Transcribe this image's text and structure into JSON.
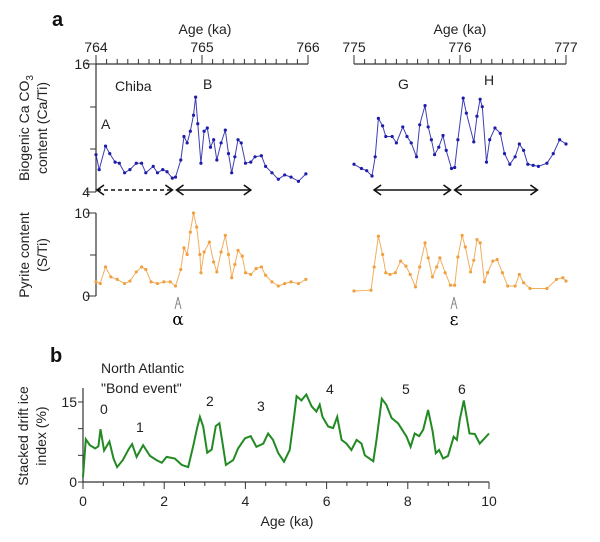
{
  "panel_a": {
    "letter": "a",
    "site_label": "Chiba",
    "ca_ylabel_line1": "Biogenic Ca CO",
    "ca_ylabel_sub": "3",
    "ca_ylabel_line2": "content (Ca/Ti)",
    "pyrite_ylabel_line1": "Pyrite content",
    "pyrite_ylabel_line2": "(S/Ti)",
    "event_labels": {
      "A": "A",
      "B": "B",
      "G": "G",
      "H": "H"
    },
    "markers": {
      "alpha": "α",
      "epsilon": "ε"
    }
  },
  "panel_b": {
    "letter": "b",
    "title_line1": "North Atlantic",
    "title_line2": "\"Bond event\"",
    "ylabel_line1": "Stacked drift ice",
    "ylabel_line2": "index (%)",
    "event_labels": [
      "0",
      "1",
      "2",
      "3",
      "4",
      "5",
      "6"
    ]
  },
  "colors": {
    "ca": "#1c1ca8",
    "pyrite": "#f0a040",
    "bond": "#238a23"
  },
  "chart_data": [
    {
      "type": "line",
      "panel": "a-top",
      "xlabel": "Age (ka)",
      "ylabel": "Biogenic Ca CO3 content (Ca/Ti)",
      "ylim": [
        4,
        16
      ],
      "yticks": [
        "16",
        "4"
      ],
      "windows": [
        {
          "xlim": [
            764,
            766
          ],
          "xticks": [
            "764",
            "765",
            "766"
          ],
          "x": [
            764.0,
            764.03,
            764.09,
            764.13,
            764.18,
            764.22,
            764.27,
            764.32,
            764.38,
            764.43,
            764.47,
            764.54,
            764.58,
            764.63,
            764.67,
            764.72,
            764.75,
            764.8,
            764.83,
            764.86,
            764.89,
            764.92,
            764.94,
            764.96,
            764.99,
            765.02,
            765.05,
            765.08,
            765.11,
            765.14,
            765.18,
            765.22,
            765.25,
            765.28,
            765.31,
            765.34,
            765.37,
            765.41,
            765.46,
            765.5,
            765.56,
            765.6,
            765.66,
            765.72,
            765.78,
            765.84,
            765.91,
            765.98
          ],
          "y": [
            7.5,
            6.1,
            8.3,
            7.6,
            6.8,
            6.7,
            5.8,
            6.1,
            6.7,
            6.7,
            5.8,
            6.4,
            5.8,
            6.1,
            5.9,
            5.3,
            5.4,
            7.0,
            9.2,
            8.6,
            9.7,
            11.2,
            12.9,
            10.4,
            6.7,
            9.7,
            10.0,
            8.2,
            8.9,
            7.0,
            8.6,
            9.8,
            7.6,
            5.8,
            7.3,
            8.9,
            8.6,
            6.7,
            6.8,
            7.3,
            7.4,
            6.4,
            5.8,
            5.2,
            5.6,
            5.4,
            5.0,
            5.7
          ]
        },
        {
          "xlim": [
            775,
            777
          ],
          "xticks": [
            "775",
            "776",
            "777"
          ],
          "x": [
            775.0,
            775.07,
            775.12,
            775.17,
            775.2,
            775.23,
            775.27,
            775.3,
            775.36,
            775.4,
            775.46,
            775.5,
            775.54,
            775.59,
            775.62,
            775.67,
            775.7,
            775.73,
            775.76,
            775.8,
            775.84,
            775.87,
            775.92,
            775.95,
            775.98,
            776.03,
            776.06,
            776.13,
            776.16,
            776.19,
            776.21,
            776.25,
            776.28,
            776.33,
            776.38,
            776.42,
            776.47,
            776.52,
            776.56,
            776.6,
            776.64,
            776.69,
            776.74,
            776.82,
            776.88,
            776.94,
            777.0
          ],
          "y": [
            6.6,
            6.2,
            6.0,
            5.5,
            7.3,
            10.9,
            10.2,
            9.2,
            9.2,
            8.6,
            10.1,
            9.2,
            8.6,
            7.3,
            10.3,
            12.1,
            10.1,
            8.9,
            7.5,
            8.2,
            9.3,
            7.9,
            6.2,
            6.3,
            8.9,
            12.8,
            11.4,
            8.7,
            11.1,
            12.7,
            12.0,
            6.8,
            8.9,
            10.0,
            9.5,
            7.6,
            6.6,
            7.3,
            8.5,
            7.9,
            6.6,
            6.5,
            6.4,
            6.7,
            7.6,
            8.9,
            8.5
          ]
        }
      ],
      "intervals": [
        {
          "label": "A",
          "style": "dashed",
          "range": [
            764.0,
            764.73
          ]
        },
        {
          "label": "B",
          "style": "solid",
          "range": [
            764.75,
            765.47
          ]
        },
        {
          "label": "G",
          "style": "solid",
          "range": [
            775.18,
            775.92
          ]
        },
        {
          "label": "H",
          "style": "solid",
          "range": [
            775.94,
            776.74
          ]
        }
      ]
    },
    {
      "type": "line",
      "panel": "a-bottom",
      "ylabel": "Pyrite content (S/Ti)",
      "ylim": [
        0,
        10
      ],
      "yticks": [
        "10",
        "0"
      ],
      "windows": [
        {
          "xlim": [
            764,
            766
          ],
          "x": [
            764.0,
            764.04,
            764.09,
            764.14,
            764.2,
            764.27,
            764.32,
            764.38,
            764.43,
            764.47,
            764.52,
            764.58,
            764.64,
            764.7,
            764.75,
            764.8,
            764.83,
            764.86,
            764.89,
            764.92,
            764.95,
            764.98,
            764.99,
            765.02,
            765.07,
            765.11,
            765.14,
            765.18,
            765.22,
            765.25,
            765.28,
            765.31,
            765.34,
            765.38,
            765.41,
            765.46,
            765.51,
            765.56,
            765.6,
            765.66,
            765.72,
            765.78,
            765.84,
            765.91,
            765.98
          ],
          "y": [
            1.7,
            1.5,
            3.5,
            2.3,
            2.0,
            1.5,
            1.8,
            2.9,
            3.5,
            3.2,
            1.7,
            1.5,
            1.7,
            1.7,
            1.2,
            3.2,
            5.8,
            5.0,
            7.7,
            10.0,
            8.3,
            5.0,
            2.8,
            5.3,
            6.5,
            4.1,
            2.9,
            5.3,
            7.3,
            5.0,
            2.2,
            3.8,
            5.5,
            4.8,
            2.8,
            2.6,
            3.3,
            3.5,
            2.5,
            1.7,
            1.2,
            1.5,
            1.7,
            1.5,
            2.0
          ]
        },
        {
          "xlim": [
            775,
            777
          ],
          "x": [
            775.0,
            775.16,
            775.19,
            775.23,
            775.27,
            775.3,
            775.34,
            775.39,
            775.44,
            775.49,
            775.53,
            775.58,
            775.62,
            775.67,
            775.7,
            775.74,
            775.78,
            775.81,
            775.86,
            775.91,
            775.95,
            775.98,
            776.02,
            776.05,
            776.1,
            776.13,
            776.16,
            776.19,
            776.23,
            776.26,
            776.31,
            776.35,
            776.4,
            776.45,
            776.52,
            776.56,
            776.6,
            776.66,
            776.82,
            776.91,
            776.97,
            777.0
          ],
          "y": [
            0.6,
            0.7,
            3.5,
            7.2,
            5.0,
            2.8,
            2.6,
            2.8,
            4.2,
            3.6,
            2.6,
            1.1,
            3.5,
            6.4,
            4.6,
            2.3,
            3.5,
            4.6,
            2.8,
            1.3,
            1.3,
            4.7,
            7.3,
            5.9,
            2.9,
            4.3,
            6.8,
            6.4,
            1.7,
            2.8,
            4.2,
            4.4,
            2.8,
            1.2,
            1.2,
            2.6,
            1.6,
            0.9,
            0.9,
            2.0,
            2.2,
            1.8
          ]
        }
      ]
    },
    {
      "type": "line",
      "panel": "b",
      "xlabel": "Age (ka)",
      "ylabel": "Stacked drift ice index (%)",
      "xlim": [
        0,
        10
      ],
      "ylim": [
        0,
        17
      ],
      "xticks": [
        "0",
        "2",
        "4",
        "6",
        "8",
        "10"
      ],
      "yticks": [
        "0",
        "15"
      ],
      "x": [
        0,
        0.07,
        0.17,
        0.3,
        0.38,
        0.43,
        0.52,
        0.65,
        0.75,
        0.84,
        0.98,
        1.12,
        1.21,
        1.32,
        1.48,
        1.65,
        1.81,
        1.94,
        2.06,
        2.26,
        2.43,
        2.59,
        2.72,
        2.81,
        2.88,
        2.96,
        3.06,
        3.17,
        3.27,
        3.36,
        3.43,
        3.52,
        3.7,
        3.82,
        3.99,
        4.13,
        4.27,
        4.44,
        4.56,
        4.68,
        4.81,
        4.95,
        5.09,
        5.19,
        5.26,
        5.38,
        5.5,
        5.63,
        5.75,
        5.83,
        5.9,
        6.04,
        6.16,
        6.26,
        6.37,
        6.49,
        6.61,
        6.74,
        6.86,
        6.94,
        7.15,
        7.23,
        7.36,
        7.47,
        7.6,
        7.76,
        7.97,
        8.07,
        8.17,
        8.28,
        8.38,
        8.5,
        8.61,
        8.69,
        8.77,
        8.87,
        8.99,
        9.13,
        9.21,
        9.28,
        9.38,
        9.52,
        9.65,
        9.77,
        10.0
      ],
      "y": [
        0.9,
        8.0,
        6.9,
        6.3,
        6.7,
        9.9,
        5.9,
        7.6,
        4.4,
        2.8,
        4.1,
        6.1,
        7.1,
        4.7,
        6.9,
        4.9,
        4.1,
        3.6,
        4.7,
        4.4,
        3.2,
        2.8,
        6.9,
        10.1,
        12.2,
        10.4,
        5.5,
        6.1,
        10.5,
        11.0,
        7.6,
        3.2,
        4.1,
        6.3,
        8.2,
        8.6,
        6.6,
        7.2,
        9.1,
        7.9,
        5.4,
        3.8,
        6.0,
        11.7,
        16.1,
        15.3,
        16.4,
        14.2,
        13.2,
        14.5,
        12.2,
        10.4,
        10.1,
        12.2,
        7.9,
        7.2,
        6.0,
        7.9,
        7.2,
        5.0,
        3.9,
        7.9,
        15.6,
        14.5,
        12.0,
        11.0,
        8.5,
        6.6,
        9.1,
        8.6,
        9.8,
        13.5,
        9.5,
        5.4,
        6.0,
        4.4,
        4.9,
        8.5,
        7.9,
        11.7,
        15.3,
        9.1,
        9.0,
        7.2,
        9.1
      ]
    }
  ]
}
